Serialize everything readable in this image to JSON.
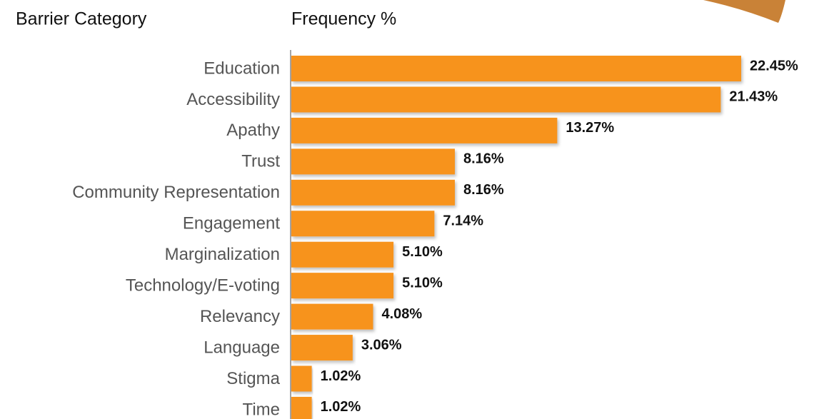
{
  "chart_data": {
    "type": "bar",
    "orientation": "horizontal",
    "category_header": "Barrier Category",
    "value_header": "Frequency %",
    "color": "#f7931e",
    "categories": [
      "Education",
      "Accessibility",
      "Apathy",
      "Trust",
      "Community Representation",
      "Engagement",
      "Marginalization",
      "Technology/E-voting",
      "Relevancy",
      "Language",
      "Stigma",
      "Time"
    ],
    "values": [
      22.45,
      21.43,
      13.27,
      8.16,
      8.16,
      7.14,
      5.1,
      5.1,
      4.08,
      3.06,
      1.02,
      1.02
    ],
    "value_labels": [
      "22.45%",
      "21.43%",
      "13.27%",
      "8.16%",
      "8.16%",
      "7.14%",
      "5.10%",
      "5.10%",
      "4.08%",
      "3.06%",
      "1.02%",
      "1.02%"
    ]
  }
}
